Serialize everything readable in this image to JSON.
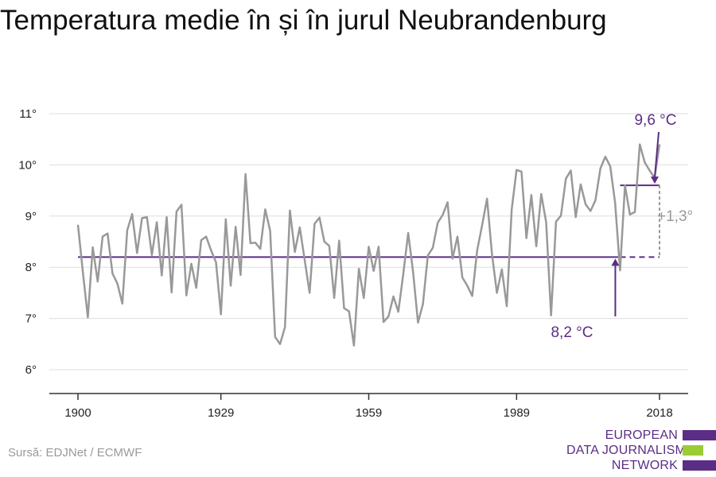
{
  "title": "Temperatura medie în și în jurul Neubrandenburg",
  "source": "Sursă: EDJNet / ECMWF",
  "logo": {
    "line1": "EUROPEAN",
    "line2": "DATA JOURNALISM",
    "line3": "NETWORK"
  },
  "colors": {
    "series": "#999999",
    "accent": "#5b2d86",
    "grid": "#dddddd",
    "logo_green": "#9acd32"
  },
  "chart_data": {
    "type": "line",
    "title": "Temperatura medie în și în jurul Neubrandenburg",
    "xlabel": "",
    "ylabel": "",
    "xlim": [
      1900,
      2018
    ],
    "ylim": [
      6,
      11
    ],
    "x_ticks": [
      "1900",
      "1929",
      "1959",
      "1989",
      "2018"
    ],
    "x_tick_values": [
      1900,
      1929,
      1959,
      1989,
      2018
    ],
    "y_ticks": [
      "6°",
      "7°",
      "8°",
      "9°",
      "10°",
      "11°"
    ],
    "y_tick_values": [
      6,
      7,
      8,
      9,
      10,
      11
    ],
    "grid": true,
    "series": [
      {
        "x": [
          1900,
          1901,
          1902,
          1903,
          1904,
          1905,
          1906,
          1907,
          1908,
          1909,
          1910,
          1911,
          1912,
          1913,
          1914,
          1915,
          1916,
          1917,
          1918,
          1919,
          1920,
          1921,
          1922,
          1923,
          1924,
          1925,
          1926,
          1927,
          1928,
          1929,
          1930,
          1931,
          1932,
          1933,
          1934,
          1935,
          1936,
          1937,
          1938,
          1939,
          1940,
          1941,
          1942,
          1943,
          1944,
          1945,
          1946,
          1947,
          1948,
          1949,
          1950,
          1951,
          1952,
          1953,
          1954,
          1955,
          1956,
          1957,
          1958,
          1959,
          1960,
          1961,
          1962,
          1963,
          1964,
          1965,
          1966,
          1967,
          1968,
          1969,
          1970,
          1971,
          1972,
          1973,
          1974,
          1975,
          1976,
          1977,
          1978,
          1979,
          1980,
          1981,
          1982,
          1983,
          1984,
          1985,
          1986,
          1987,
          1988,
          1989,
          1990,
          1991,
          1992,
          1993,
          1994,
          1995,
          1996,
          1997,
          1998,
          1999,
          2000,
          2001,
          2002,
          2003,
          2004,
          2005,
          2006,
          2007,
          2008,
          2009,
          2010,
          2011,
          2012,
          2013,
          2014,
          2015,
          2016,
          2017,
          2018
        ],
        "values": [
          8.83,
          7.9,
          7.02,
          8.39,
          7.72,
          8.6,
          8.66,
          7.88,
          7.68,
          7.29,
          8.72,
          9.04,
          8.28,
          8.96,
          8.98,
          8.24,
          8.88,
          7.84,
          8.98,
          7.51,
          9.09,
          9.22,
          7.45,
          8.07,
          7.6,
          8.53,
          8.6,
          8.33,
          8.1,
          7.08,
          8.94,
          7.64,
          8.79,
          7.85,
          9.82,
          8.47,
          8.48,
          8.36,
          9.13,
          8.71,
          6.64,
          6.5,
          6.83,
          9.11,
          8.3,
          8.78,
          8.14,
          7.5,
          8.85,
          8.97,
          8.5,
          8.42,
          7.4,
          8.52,
          7.2,
          7.14,
          6.47,
          7.97,
          7.4,
          8.4,
          7.93,
          8.4,
          6.93,
          7.04,
          7.43,
          7.13,
          7.87,
          8.67,
          7.9,
          6.92,
          7.28,
          8.23,
          8.38,
          8.87,
          9.02,
          9.27,
          8.17,
          8.6,
          7.8,
          7.64,
          7.44,
          8.33,
          8.82,
          9.34,
          8.26,
          7.5,
          7.96,
          7.24,
          9.13,
          9.9,
          9.87,
          8.57,
          9.41,
          8.41,
          9.43,
          8.88,
          7.06,
          8.89,
          9.01,
          9.73,
          9.89,
          8.98,
          9.62,
          9.23,
          9.1,
          9.31,
          9.93,
          10.16,
          9.97,
          9.26,
          7.94,
          9.6,
          9.03,
          9.08,
          10.4,
          10.05,
          9.89,
          9.75,
          10.4
        ]
      }
    ],
    "annotations": {
      "baseline": {
        "value": 8.2,
        "label": "8,2 °C",
        "from": 1900,
        "to": 2010
      },
      "recent": {
        "value": 9.6,
        "label": "9,6 °C",
        "from": 2010,
        "to": 2018
      },
      "difference": {
        "label": "+1,3°"
      }
    }
  }
}
